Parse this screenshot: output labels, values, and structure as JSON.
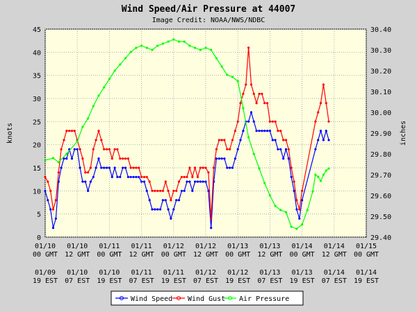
{
  "chart_data": {
    "type": "line",
    "title": "Wind Speed/Air Pressure at 44007",
    "subtitle": "Image Credit: NOAA/NWS/NDBC",
    "ylabel_left": "knots",
    "ylabel_right": "inches",
    "ylim_left": [
      0,
      45
    ],
    "ylim_right": [
      29.4,
      30.4
    ],
    "yticks_left": [
      "0",
      "5",
      "10",
      "15",
      "20",
      "25",
      "30",
      "35",
      "40",
      "45"
    ],
    "yticks_right": [
      "29.40",
      "29.50",
      "29.60",
      "29.70",
      "29.80",
      "29.90",
      "30.00",
      "30.10",
      "30.20",
      "30.30",
      "30.40"
    ],
    "x_unit": "hours from 01/10 00 GMT",
    "xlim": [
      0,
      120
    ],
    "xticks": [
      {
        "x": 0,
        "date1": "01/10",
        "time1": "00 GMT",
        "date2": "01/09",
        "time2": "19 EST"
      },
      {
        "x": 12,
        "date1": "01/10",
        "time1": "12 GMT",
        "date2": "01/10",
        "time2": "07 EST"
      },
      {
        "x": 24,
        "date1": "01/11",
        "time1": "00 GMT",
        "date2": "01/10",
        "time2": "19 EST"
      },
      {
        "x": 36,
        "date1": "01/11",
        "time1": "12 GMT",
        "date2": "01/11",
        "time2": "07 EST"
      },
      {
        "x": 48,
        "date1": "01/12",
        "time1": "00 GMT",
        "date2": "01/11",
        "time2": "19 EST"
      },
      {
        "x": 60,
        "date1": "01/12",
        "time1": "12 GMT",
        "date2": "01/12",
        "time2": "07 EST"
      },
      {
        "x": 72,
        "date1": "01/13",
        "time1": "00 GMT",
        "date2": "01/12",
        "time2": "19 EST"
      },
      {
        "x": 84,
        "date1": "01/13",
        "time1": "12 GMT",
        "date2": "01/13",
        "time2": "07 EST"
      },
      {
        "x": 96,
        "date1": "01/14",
        "time1": "00 GMT",
        "date2": "01/13",
        "time2": "19 EST"
      },
      {
        "x": 108,
        "date1": "01/14",
        "time1": "12 GMT",
        "date2": "01/14",
        "time2": "07 EST"
      },
      {
        "x": 120,
        "date1": "01/15",
        "time1": "00 GMT",
        "date2": "01/14",
        "time2": "19 EST"
      }
    ],
    "grid": true,
    "legend_position": "bottom",
    "series": [
      {
        "name": "Wind Speed",
        "color": "#0000ff",
        "axis": "left",
        "points": [
          [
            0,
            10
          ],
          [
            1,
            8
          ],
          [
            2,
            6
          ],
          [
            3,
            2
          ],
          [
            4,
            4
          ],
          [
            5,
            12
          ],
          [
            6,
            15
          ],
          [
            7,
            17
          ],
          [
            8,
            17
          ],
          [
            9,
            19
          ],
          [
            10,
            17
          ],
          [
            11,
            19
          ],
          [
            12,
            19
          ],
          [
            13,
            15
          ],
          [
            14,
            12
          ],
          [
            15,
            12
          ],
          [
            16,
            10
          ],
          [
            17,
            12
          ],
          [
            18,
            13
          ],
          [
            19,
            15
          ],
          [
            20,
            17
          ],
          [
            21,
            15
          ],
          [
            22,
            15
          ],
          [
            23,
            15
          ],
          [
            24,
            15
          ],
          [
            25,
            13
          ],
          [
            26,
            15
          ],
          [
            27,
            13
          ],
          [
            28,
            13
          ],
          [
            29,
            15
          ],
          [
            30,
            15
          ],
          [
            31,
            13
          ],
          [
            32,
            13
          ],
          [
            33,
            13
          ],
          [
            34,
            13
          ],
          [
            35,
            13
          ],
          [
            36,
            12
          ],
          [
            37,
            12
          ],
          [
            38,
            10
          ],
          [
            39,
            8
          ],
          [
            40,
            6
          ],
          [
            41,
            6
          ],
          [
            42,
            6
          ],
          [
            43,
            6
          ],
          [
            44,
            8
          ],
          [
            45,
            8
          ],
          [
            46,
            6
          ],
          [
            47,
            4
          ],
          [
            48,
            6
          ],
          [
            49,
            8
          ],
          [
            50,
            8
          ],
          [
            51,
            10
          ],
          [
            52,
            10
          ],
          [
            53,
            12
          ],
          [
            54,
            12
          ],
          [
            55,
            10
          ],
          [
            56,
            12
          ],
          [
            57,
            12
          ],
          [
            58,
            12
          ],
          [
            59,
            12
          ],
          [
            60,
            12
          ],
          [
            61,
            10
          ],
          [
            62,
            2
          ],
          [
            63,
            12
          ],
          [
            64,
            17
          ],
          [
            65,
            17
          ],
          [
            66,
            17
          ],
          [
            67,
            17
          ],
          [
            68,
            15
          ],
          [
            69,
            15
          ],
          [
            70,
            15
          ],
          [
            71,
            17
          ],
          [
            72,
            19
          ],
          [
            73,
            21
          ],
          [
            74,
            23
          ],
          [
            75,
            25
          ],
          [
            76,
            25
          ],
          [
            77,
            27
          ],
          [
            78,
            25
          ],
          [
            79,
            23
          ],
          [
            80,
            23
          ],
          [
            81,
            23
          ],
          [
            82,
            23
          ],
          [
            83,
            23
          ],
          [
            84,
            23
          ],
          [
            85,
            21
          ],
          [
            86,
            21
          ],
          [
            87,
            19
          ],
          [
            88,
            19
          ],
          [
            89,
            17
          ],
          [
            90,
            19
          ],
          [
            91,
            17
          ],
          [
            92,
            13
          ],
          [
            93,
            10
          ],
          [
            94,
            6
          ],
          [
            95,
            4
          ],
          [
            96,
            8
          ],
          [
            101,
            19
          ],
          [
            102,
            21
          ],
          [
            103,
            23
          ],
          [
            104,
            21
          ],
          [
            105,
            23
          ],
          [
            106,
            21
          ]
        ]
      },
      {
        "name": "Wind Gust",
        "color": "#ff0000",
        "axis": "left",
        "points": [
          [
            0,
            13
          ],
          [
            1,
            12
          ],
          [
            2,
            10
          ],
          [
            3,
            6
          ],
          [
            4,
            8
          ],
          [
            5,
            14
          ],
          [
            6,
            19
          ],
          [
            7,
            21
          ],
          [
            8,
            23
          ],
          [
            9,
            23
          ],
          [
            10,
            23
          ],
          [
            11,
            23
          ],
          [
            12,
            21
          ],
          [
            13,
            19
          ],
          [
            14,
            17
          ],
          [
            15,
            14
          ],
          [
            16,
            14
          ],
          [
            17,
            15
          ],
          [
            18,
            19
          ],
          [
            19,
            21
          ],
          [
            20,
            23
          ],
          [
            21,
            21
          ],
          [
            22,
            19
          ],
          [
            23,
            19
          ],
          [
            24,
            19
          ],
          [
            25,
            17
          ],
          [
            26,
            19
          ],
          [
            27,
            19
          ],
          [
            28,
            17
          ],
          [
            29,
            17
          ],
          [
            30,
            17
          ],
          [
            31,
            17
          ],
          [
            32,
            15
          ],
          [
            33,
            15
          ],
          [
            34,
            15
          ],
          [
            35,
            15
          ],
          [
            36,
            13
          ],
          [
            37,
            13
          ],
          [
            38,
            13
          ],
          [
            39,
            12
          ],
          [
            40,
            10
          ],
          [
            41,
            10
          ],
          [
            42,
            10
          ],
          [
            43,
            10
          ],
          [
            44,
            10
          ],
          [
            45,
            12
          ],
          [
            46,
            10
          ],
          [
            47,
            8
          ],
          [
            48,
            10
          ],
          [
            49,
            10
          ],
          [
            50,
            12
          ],
          [
            51,
            13
          ],
          [
            52,
            13
          ],
          [
            53,
            13
          ],
          [
            54,
            15
          ],
          [
            55,
            13
          ],
          [
            56,
            15
          ],
          [
            57,
            13
          ],
          [
            58,
            15
          ],
          [
            59,
            15
          ],
          [
            60,
            15
          ],
          [
            61,
            14
          ],
          [
            62,
            4
          ],
          [
            63,
            15
          ],
          [
            64,
            19
          ],
          [
            65,
            21
          ],
          [
            66,
            21
          ],
          [
            67,
            21
          ],
          [
            68,
            19
          ],
          [
            69,
            19
          ],
          [
            70,
            21
          ],
          [
            71,
            23
          ],
          [
            72,
            25
          ],
          [
            73,
            29
          ],
          [
            74,
            31
          ],
          [
            75,
            33
          ],
          [
            76,
            41
          ],
          [
            77,
            33
          ],
          [
            78,
            31
          ],
          [
            79,
            29
          ],
          [
            80,
            31
          ],
          [
            81,
            31
          ],
          [
            82,
            29
          ],
          [
            83,
            29
          ],
          [
            84,
            25
          ],
          [
            85,
            25
          ],
          [
            86,
            25
          ],
          [
            87,
            23
          ],
          [
            88,
            23
          ],
          [
            89,
            21
          ],
          [
            90,
            21
          ],
          [
            91,
            19
          ],
          [
            92,
            15
          ],
          [
            93,
            12
          ],
          [
            94,
            8
          ],
          [
            95,
            6
          ],
          [
            96,
            10
          ],
          [
            101,
            25
          ],
          [
            102,
            27
          ],
          [
            103,
            29
          ],
          [
            104,
            33
          ],
          [
            105,
            29
          ],
          [
            106,
            25
          ]
        ]
      },
      {
        "name": "Air Pressure",
        "color": "#00ff00",
        "axis": "right",
        "points": [
          [
            0,
            29.77
          ],
          [
            3,
            29.78
          ],
          [
            5,
            29.76
          ],
          [
            8,
            29.8
          ],
          [
            12,
            29.86
          ],
          [
            14,
            29.93
          ],
          [
            16,
            29.97
          ],
          [
            18,
            30.03
          ],
          [
            20,
            30.08
          ],
          [
            22,
            30.12
          ],
          [
            24,
            30.16
          ],
          [
            26,
            30.2
          ],
          [
            28,
            30.23
          ],
          [
            30,
            30.26
          ],
          [
            32,
            30.29
          ],
          [
            34,
            30.31
          ],
          [
            36,
            30.32
          ],
          [
            38,
            30.31
          ],
          [
            40,
            30.3
          ],
          [
            42,
            30.32
          ],
          [
            44,
            30.33
          ],
          [
            46,
            30.34
          ],
          [
            48,
            30.35
          ],
          [
            50,
            30.34
          ],
          [
            52,
            30.34
          ],
          [
            54,
            30.32
          ],
          [
            56,
            30.31
          ],
          [
            58,
            30.3
          ],
          [
            60,
            30.31
          ],
          [
            62,
            30.3
          ],
          [
            64,
            30.26
          ],
          [
            66,
            30.22
          ],
          [
            68,
            30.18
          ],
          [
            70,
            30.17
          ],
          [
            72,
            30.15
          ],
          [
            74,
            30.02
          ],
          [
            76,
            29.88
          ],
          [
            78,
            29.8
          ],
          [
            80,
            29.73
          ],
          [
            82,
            29.66
          ],
          [
            84,
            29.6
          ],
          [
            86,
            29.55
          ],
          [
            88,
            29.53
          ],
          [
            90,
            29.52
          ],
          [
            92,
            29.45
          ],
          [
            94,
            29.44
          ],
          [
            96,
            29.46
          ],
          [
            98,
            29.53
          ],
          [
            100,
            29.62
          ],
          [
            101,
            29.7
          ],
          [
            102,
            29.69
          ],
          [
            103,
            29.67
          ],
          [
            104,
            29.7
          ],
          [
            105,
            29.72
          ],
          [
            106,
            29.73
          ]
        ]
      }
    ]
  }
}
